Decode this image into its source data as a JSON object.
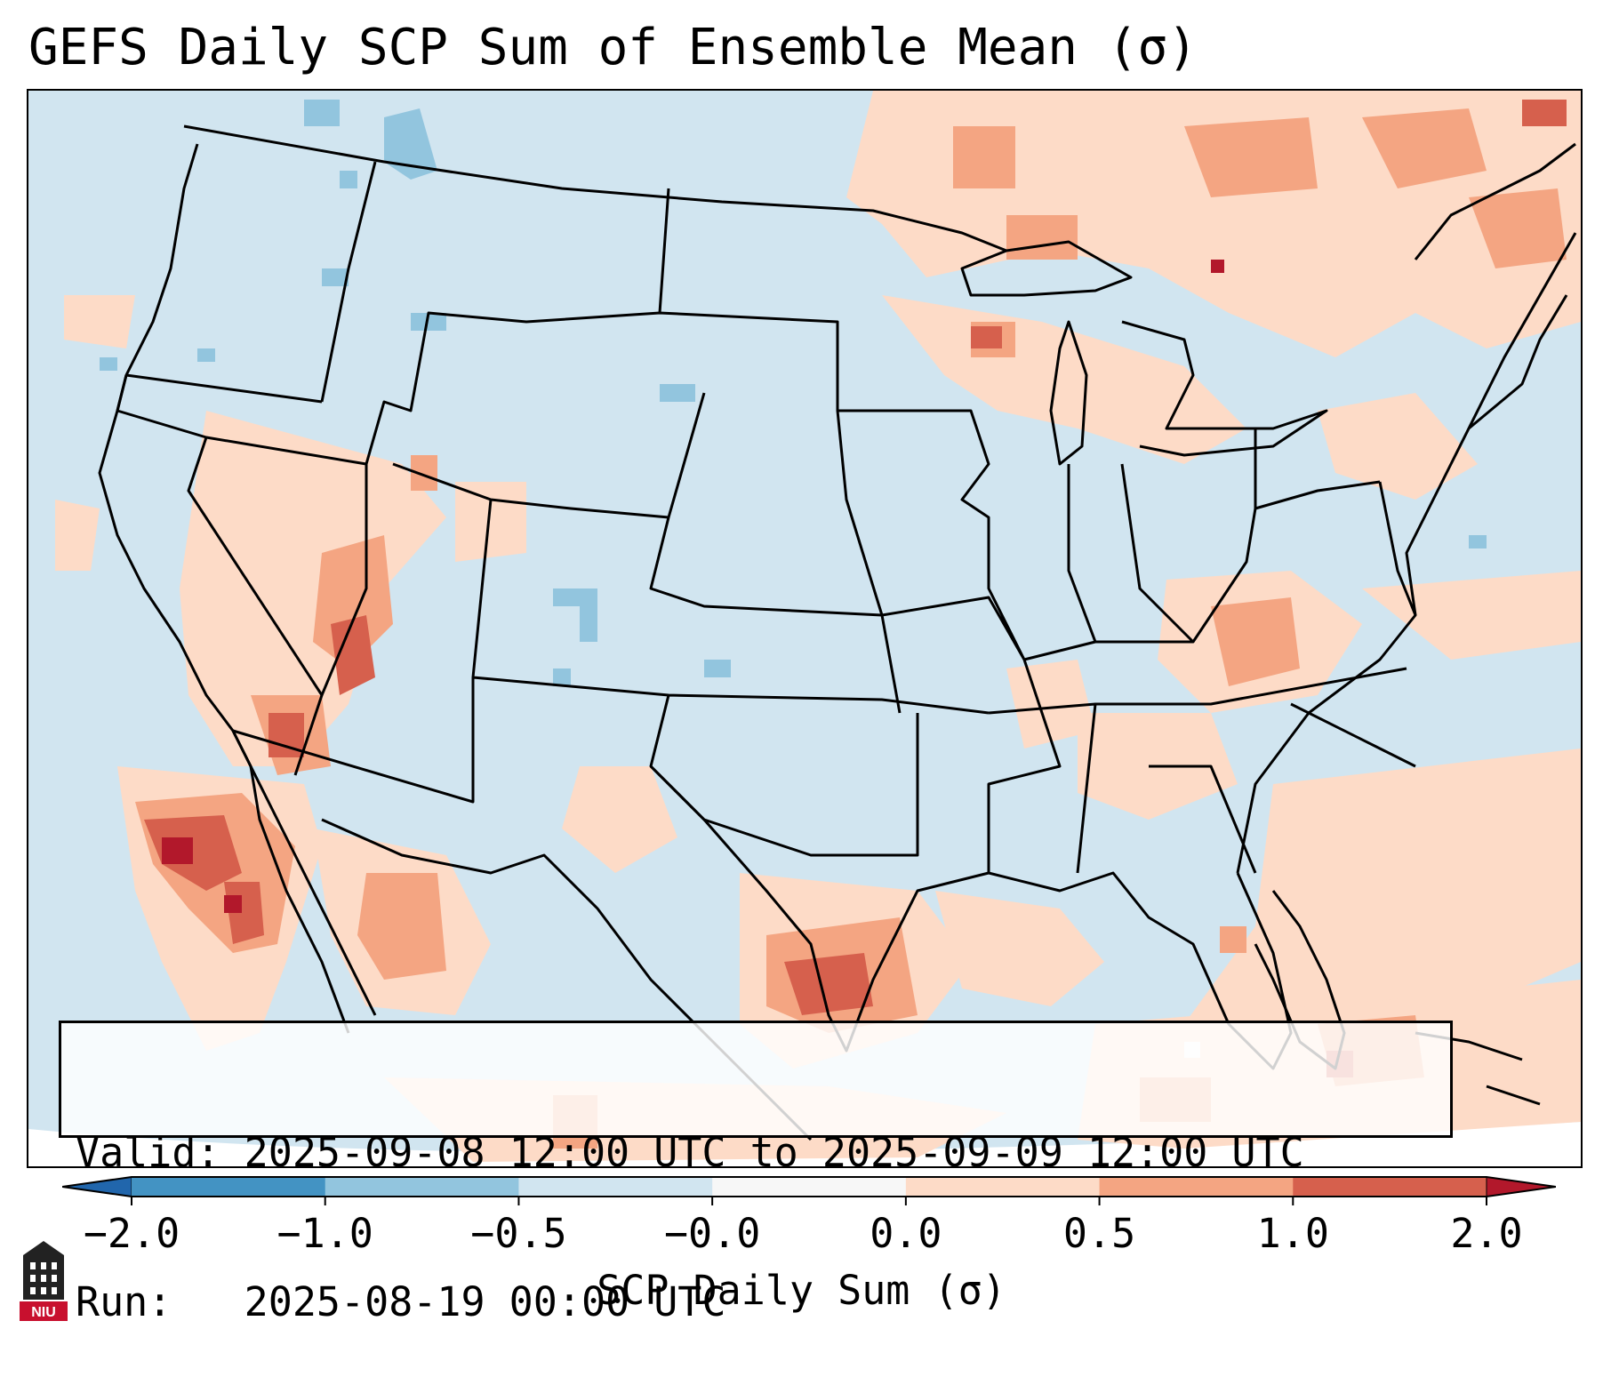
{
  "title": "GEFS Daily SCP Sum of Ensemble Mean (σ)",
  "map": {
    "colors": {
      "ocean_land_neutral": "#d1e5f0",
      "light_red": "#fddbc7",
      "medium_red": "#f4a582",
      "strong_red": "#d6604d",
      "dark_red": "#b2182b",
      "light_blue": "#92c5de",
      "medium_blue": "#4393c3",
      "dark_blue": "#2166ac",
      "white": "#f7f7f7",
      "borders": "#000000"
    }
  },
  "info": {
    "valid": "Valid: 2025-09-08 12:00 UTC to 2025-09-09 12:00 UTC",
    "run": "Run:   2025-08-19 00:00 UTC"
  },
  "colorbar": {
    "ticks": [
      "−2.0",
      "−1.0",
      "−0.5",
      "−0.0",
      "0.0",
      "0.5",
      "1.0",
      "2.0"
    ],
    "label": "SCP Daily Sum (σ)",
    "colors": [
      "#2166ac",
      "#4393c3",
      "#92c5de",
      "#d1e5f0",
      "#f7f7f7",
      "#fddbc7",
      "#f4a582",
      "#d6604d",
      "#b2182b"
    ]
  },
  "logo": {
    "text": "NIU",
    "colors": {
      "background": "#c8102e",
      "building": "#222222"
    }
  }
}
